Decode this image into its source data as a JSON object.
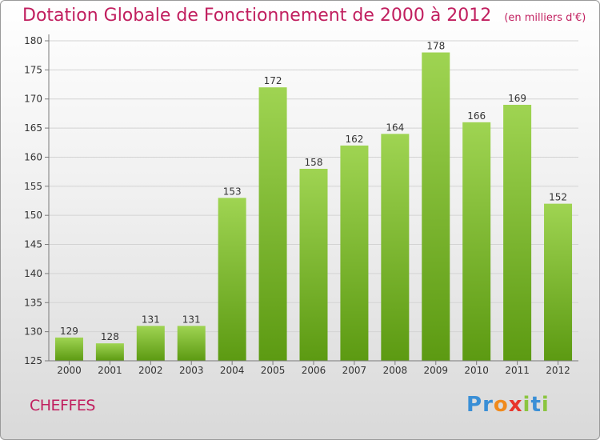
{
  "title": "Dotation Globale de Fonctionnement de 2000 à 2012",
  "unit": "(en milliers d'€)",
  "commune": "CHEFFES",
  "logo": {
    "text": "Proxiti",
    "letters": [
      "P",
      "r",
      "o",
      "x",
      "i",
      "t",
      "i"
    ],
    "colors": [
      "#3a8fd6",
      "#3a8fd6",
      "#f08a1c",
      "#e8352b",
      "#8bc53f",
      "#3a8fd6",
      "#8bc53f"
    ]
  },
  "colors": {
    "bar_top": "#9fd452",
    "bar_bottom": "#5c9a12",
    "title": "#c11f5f",
    "grid": "#d3d3d3",
    "axis": "#7a7a7a"
  },
  "chart_data": {
    "type": "bar",
    "title": "Dotation Globale de Fonctionnement de 2000 à 2012",
    "categories": [
      "2000",
      "2001",
      "2002",
      "2003",
      "2004",
      "2005",
      "2006",
      "2007",
      "2008",
      "2009",
      "2010",
      "2011",
      "2012"
    ],
    "values": [
      129,
      128,
      131,
      131,
      153,
      172,
      158,
      162,
      164,
      178,
      166,
      169,
      152
    ],
    "ylim": [
      125,
      180
    ],
    "yticks": [
      125,
      130,
      135,
      140,
      145,
      150,
      155,
      160,
      165,
      170,
      175,
      180
    ],
    "grid": true,
    "data_labels": true
  }
}
